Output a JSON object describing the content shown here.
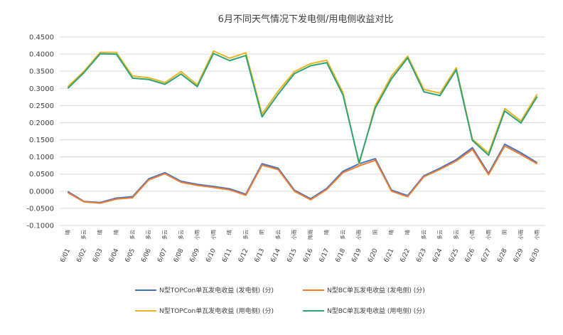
{
  "chart_data": {
    "type": "line",
    "title": "6月不同天气情况下发电侧/用电侧收益对比",
    "xlabel": "",
    "ylabel": "",
    "ylim": [
      -0.1,
      0.45
    ],
    "yticks": [
      "0.4500",
      "0.4000",
      "0.3500",
      "0.3000",
      "0.2500",
      "0.2000",
      "0.1500",
      "0.1000",
      "0.0500",
      "0.0000",
      "-0.0500",
      "-0.1000"
    ],
    "grid": true,
    "legend_position": "bottom",
    "categories": [
      "6/01",
      "6/02",
      "6/03",
      "6/04",
      "6/05",
      "6/06",
      "6/07",
      "6/08",
      "6/09",
      "6/10",
      "6/11",
      "6/12",
      "6/13",
      "6/14",
      "6/15",
      "6/16",
      "6/17",
      "6/18",
      "6/19",
      "6/20",
      "6/21",
      "6/22",
      "6/23",
      "6/24",
      "6/25",
      "6/26",
      "6/27",
      "6/28",
      "6/29",
      "6/30"
    ],
    "weather": [
      "晴",
      "多云",
      "晴",
      "晴",
      "多云",
      "多云",
      "多云",
      "多云",
      "小雨",
      "小雨",
      "晴",
      "多云",
      "阴",
      "多云",
      "小雨",
      "阵雨",
      "晴",
      "多云",
      "小雨",
      "阴",
      "晴",
      "晴",
      "多云",
      "多云",
      "多云",
      "小雨",
      "小雨",
      "阴",
      "小雨",
      "小雨"
    ],
    "series": [
      {
        "name": "N型TOPCon单瓦发电收益 (发电侧) (分)",
        "color": "#4472c4",
        "values": [
          -0.001,
          -0.03,
          -0.033,
          -0.02,
          -0.016,
          0.036,
          0.054,
          0.029,
          0.02,
          0.014,
          0.007,
          -0.009,
          0.08,
          0.067,
          0.003,
          -0.022,
          0.008,
          0.058,
          0.08,
          0.095,
          0.003,
          -0.013,
          0.045,
          0.067,
          0.092,
          0.127,
          0.052,
          0.137,
          0.112,
          0.083
        ]
      },
      {
        "name": "N型BC单瓦发电收益 (发电侧) (分)",
        "color": "#ed7d31",
        "values": [
          -0.004,
          -0.031,
          -0.035,
          -0.023,
          -0.019,
          0.033,
          0.051,
          0.026,
          0.017,
          0.011,
          0.004,
          -0.012,
          0.076,
          0.063,
          0.0,
          -0.025,
          0.005,
          0.054,
          0.074,
          0.09,
          0.0,
          -0.016,
          0.042,
          0.064,
          0.088,
          0.122,
          0.048,
          0.132,
          0.107,
          0.08
        ]
      },
      {
        "name": "N型TOPCon单瓦发电收益 (用电侧) (分)",
        "color": "#e6b422",
        "values": [
          0.305,
          0.35,
          0.405,
          0.405,
          0.336,
          0.331,
          0.317,
          0.349,
          0.31,
          0.409,
          0.388,
          0.404,
          0.225,
          0.292,
          0.349,
          0.372,
          0.382,
          0.288,
          0.079,
          0.25,
          0.336,
          0.394,
          0.297,
          0.286,
          0.36,
          0.152,
          0.111,
          0.241,
          0.205,
          0.283
        ]
      },
      {
        "name": "N型BC单瓦发电收益 (用电侧) (分)",
        "color": "#2ea37a",
        "values": [
          0.3,
          0.346,
          0.401,
          0.4,
          0.33,
          0.326,
          0.312,
          0.342,
          0.305,
          0.402,
          0.381,
          0.396,
          0.217,
          0.283,
          0.343,
          0.366,
          0.375,
          0.281,
          0.083,
          0.243,
          0.328,
          0.389,
          0.29,
          0.279,
          0.354,
          0.148,
          0.105,
          0.234,
          0.199,
          0.276
        ]
      }
    ]
  }
}
